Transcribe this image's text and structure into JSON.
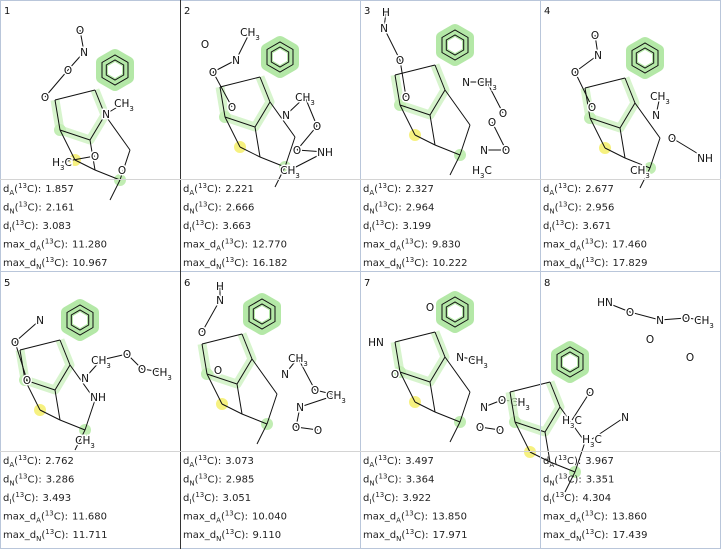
{
  "metric_labels": [
    {
      "pre": "d",
      "sub": "A",
      "mid": "(",
      "sup": "13",
      "post": "C):"
    },
    {
      "pre": "d",
      "sub": "N",
      "mid": "(",
      "sup": "13",
      "post": "C):"
    },
    {
      "pre": "d",
      "sub": "I",
      "mid": "(",
      "sup": "13",
      "post": "C):"
    },
    {
      "pre": "max_d",
      "sub": "A",
      "mid": "(",
      "sup": "13",
      "post": "C):"
    },
    {
      "pre": "max_d",
      "sub": "N",
      "mid": "(",
      "sup": "13",
      "post": "C):"
    }
  ],
  "cells": [
    {
      "number": "1",
      "atoms": [
        "O",
        "N",
        "O",
        "O",
        "N",
        "CH3",
        "O",
        "H3C",
        "O"
      ],
      "metrics": [
        "1.857",
        "2.161",
        "3.083",
        "11.280",
        "10.967"
      ]
    },
    {
      "number": "2",
      "atoms": [
        "O",
        "CH3",
        "N",
        "O",
        "O",
        "N",
        "CH3",
        "O",
        "O",
        "NH",
        "CH3"
      ],
      "metrics": [
        "2.221",
        "2.666",
        "3.663",
        "12.770",
        "16.182"
      ]
    },
    {
      "number": "3",
      "atoms": [
        "H",
        "N",
        "O",
        "O",
        "N",
        "CH3",
        "O",
        "N",
        "O",
        "O",
        "H3C"
      ],
      "metrics": [
        "2.327",
        "2.964",
        "3.199",
        "9.830",
        "10.222"
      ]
    },
    {
      "number": "4",
      "atoms": [
        "O",
        "N",
        "O",
        "O",
        "N",
        "CH3",
        "O",
        "NH",
        "CH3"
      ],
      "metrics": [
        "2.677",
        "2.956",
        "3.671",
        "17.460",
        "17.829"
      ]
    },
    {
      "number": "5",
      "atoms": [
        "N",
        "O",
        "O",
        "N",
        "CH3",
        "O",
        "O",
        "CH3",
        "NH",
        "CH3"
      ],
      "metrics": [
        "2.762",
        "3.286",
        "3.493",
        "11.680",
        "11.711"
      ]
    },
    {
      "number": "6",
      "atoms": [
        "H",
        "N",
        "O",
        "O",
        "N",
        "CH3",
        "O",
        "CH3",
        "N",
        "O",
        "O"
      ],
      "metrics": [
        "3.073",
        "2.985",
        "3.051",
        "10.040",
        "9.110"
      ]
    },
    {
      "number": "7",
      "atoms": [
        "HN",
        "O",
        "O",
        "N",
        "CH3",
        "N",
        "O",
        "CH3",
        "O",
        "O"
      ],
      "metrics": [
        "3.497",
        "3.364",
        "3.922",
        "13.850",
        "17.971"
      ]
    },
    {
      "number": "8",
      "atoms": [
        "HN",
        "O",
        "N",
        "O",
        "CH3",
        "O",
        "O",
        "O",
        "H3C",
        "N",
        "H3C"
      ],
      "metrics": [
        "3.967",
        "3.351",
        "4.304",
        "13.860",
        "17.439"
      ]
    }
  ]
}
